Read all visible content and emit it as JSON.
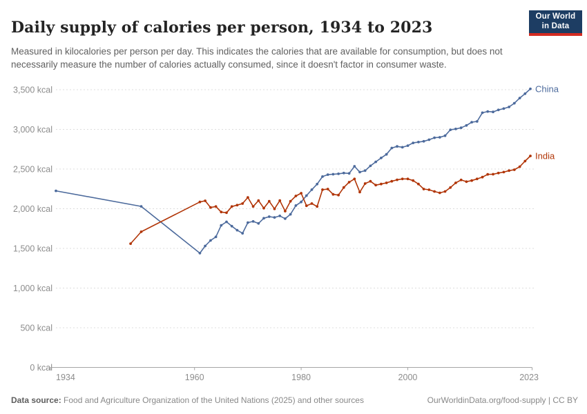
{
  "header": {
    "title": "Daily supply of calories per person, 1934 to 2023",
    "subtitle": "Measured in kilocalories per person per day. This indicates the calories that are available for consumption, but does not necessarily measure the number of calories actually consumed, since it doesn't factor in consumer waste.",
    "logo": {
      "line1": "Our World",
      "line2": "in Data",
      "bg_color": "#1d3d63",
      "accent_color": "#d42b21"
    }
  },
  "footer": {
    "datasource_label": "Data source:",
    "datasource_text": "Food and Agriculture Organization of the United Nations (2025) and other sources",
    "credit": "OurWorldinData.org/food-supply | CC BY"
  },
  "chart_data": {
    "type": "line",
    "title": "Daily supply of calories per person, 1934 to 2023",
    "xlabel": "",
    "ylabel": "",
    "unit": "kcal",
    "xlim": [
      1934,
      2023
    ],
    "ylim": [
      0,
      3500
    ],
    "x_ticks": [
      1934,
      1960,
      1980,
      2000,
      2023
    ],
    "y_ticks": [
      0,
      500,
      1000,
      1500,
      2000,
      2500,
      3000,
      3500
    ],
    "y_tick_suffix": " kcal",
    "grid": "horizontal dashed",
    "legend_position": "end-of-line labels",
    "axis_color": "#a5a5a5",
    "grid_color": "#dcdcdc",
    "tick_label_color": "#8c8c8c",
    "series": [
      {
        "name": "China",
        "color": "#4C6A9C",
        "points": [
          [
            1934,
            2225
          ],
          [
            1950,
            2030
          ],
          [
            1961,
            1440
          ],
          [
            1962,
            1530
          ],
          [
            1963,
            1600
          ],
          [
            1964,
            1645
          ],
          [
            1965,
            1790
          ],
          [
            1966,
            1835
          ],
          [
            1967,
            1780
          ],
          [
            1968,
            1730
          ],
          [
            1969,
            1690
          ],
          [
            1970,
            1825
          ],
          [
            1971,
            1840
          ],
          [
            1972,
            1815
          ],
          [
            1973,
            1880
          ],
          [
            1974,
            1900
          ],
          [
            1975,
            1890
          ],
          [
            1976,
            1910
          ],
          [
            1977,
            1875
          ],
          [
            1978,
            1930
          ],
          [
            1979,
            2040
          ],
          [
            1980,
            2085
          ],
          [
            1981,
            2165
          ],
          [
            1982,
            2240
          ],
          [
            1983,
            2310
          ],
          [
            1984,
            2405
          ],
          [
            1985,
            2430
          ],
          [
            1986,
            2435
          ],
          [
            1987,
            2440
          ],
          [
            1988,
            2450
          ],
          [
            1989,
            2445
          ],
          [
            1990,
            2535
          ],
          [
            1991,
            2462
          ],
          [
            1992,
            2480
          ],
          [
            1993,
            2540
          ],
          [
            1994,
            2590
          ],
          [
            1995,
            2640
          ],
          [
            1996,
            2685
          ],
          [
            1997,
            2765
          ],
          [
            1998,
            2785
          ],
          [
            1999,
            2775
          ],
          [
            2000,
            2795
          ],
          [
            2001,
            2830
          ],
          [
            2002,
            2840
          ],
          [
            2003,
            2850
          ],
          [
            2004,
            2870
          ],
          [
            2005,
            2895
          ],
          [
            2006,
            2900
          ],
          [
            2007,
            2920
          ],
          [
            2008,
            2995
          ],
          [
            2009,
            3005
          ],
          [
            2010,
            3020
          ],
          [
            2011,
            3050
          ],
          [
            2012,
            3090
          ],
          [
            2013,
            3100
          ],
          [
            2014,
            3210
          ],
          [
            2015,
            3225
          ],
          [
            2016,
            3220
          ],
          [
            2017,
            3245
          ],
          [
            2018,
            3262
          ],
          [
            2019,
            3283
          ],
          [
            2020,
            3330
          ],
          [
            2021,
            3395
          ],
          [
            2022,
            3450
          ],
          [
            2023,
            3510
          ]
        ]
      },
      {
        "name": "India",
        "color": "#B13507",
        "points": [
          [
            1948,
            1560
          ],
          [
            1950,
            1710
          ],
          [
            1961,
            2085
          ],
          [
            1962,
            2100
          ],
          [
            1963,
            2016
          ],
          [
            1964,
            2028
          ],
          [
            1965,
            1958
          ],
          [
            1966,
            1950
          ],
          [
            1967,
            2028
          ],
          [
            1968,
            2045
          ],
          [
            1969,
            2065
          ],
          [
            1970,
            2143
          ],
          [
            1971,
            2028
          ],
          [
            1972,
            2103
          ],
          [
            1973,
            2007
          ],
          [
            1974,
            2094
          ],
          [
            1975,
            1998
          ],
          [
            1976,
            2103
          ],
          [
            1977,
            1970
          ],
          [
            1978,
            2094
          ],
          [
            1979,
            2161
          ],
          [
            1980,
            2196
          ],
          [
            1981,
            2037
          ],
          [
            1982,
            2065
          ],
          [
            1983,
            2028
          ],
          [
            1984,
            2240
          ],
          [
            1985,
            2248
          ],
          [
            1986,
            2181
          ],
          [
            1987,
            2172
          ],
          [
            1988,
            2268
          ],
          [
            1989,
            2335
          ],
          [
            1990,
            2376
          ],
          [
            1991,
            2210
          ],
          [
            1992,
            2317
          ],
          [
            1993,
            2346
          ],
          [
            1994,
            2297
          ],
          [
            1995,
            2311
          ],
          [
            1996,
            2326
          ],
          [
            1997,
            2346
          ],
          [
            1998,
            2364
          ],
          [
            1999,
            2376
          ],
          [
            2000,
            2376
          ],
          [
            2001,
            2355
          ],
          [
            2002,
            2311
          ],
          [
            2003,
            2248
          ],
          [
            2004,
            2239
          ],
          [
            2005,
            2217
          ],
          [
            2006,
            2200
          ],
          [
            2007,
            2217
          ],
          [
            2008,
            2267
          ],
          [
            2009,
            2326
          ],
          [
            2010,
            2363
          ],
          [
            2011,
            2341
          ],
          [
            2012,
            2355
          ],
          [
            2013,
            2376
          ],
          [
            2014,
            2398
          ],
          [
            2015,
            2433
          ],
          [
            2016,
            2435
          ],
          [
            2017,
            2450
          ],
          [
            2018,
            2462
          ],
          [
            2019,
            2480
          ],
          [
            2020,
            2491
          ],
          [
            2021,
            2530
          ],
          [
            2022,
            2600
          ],
          [
            2023,
            2665
          ]
        ]
      }
    ]
  }
}
